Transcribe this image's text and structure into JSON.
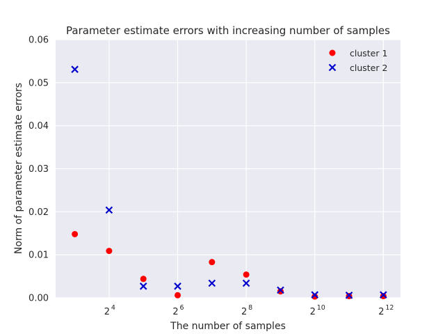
{
  "chart_data": {
    "type": "scatter",
    "title": "Parameter estimate errors with increasing number of samples",
    "xlabel": "The number of samples",
    "ylabel": "Norm of parameter estimate errors",
    "x_scale": "log2",
    "x_values_log2": [
      3,
      4,
      5,
      6,
      7,
      8,
      9,
      10,
      11,
      12
    ],
    "xlim_log2": [
      2.44,
      12.5
    ],
    "ylim": [
      0,
      0.06
    ],
    "x_ticks": [
      {
        "base": "2",
        "exp": "4",
        "value": 4
      },
      {
        "base": "2",
        "exp": "6",
        "value": 6
      },
      {
        "base": "2",
        "exp": "8",
        "value": 8
      },
      {
        "base": "2",
        "exp": "10",
        "value": 10
      },
      {
        "base": "2",
        "exp": "12",
        "value": 12
      }
    ],
    "y_ticks": [
      {
        "label": "0.00",
        "value": 0
      },
      {
        "label": "0.01",
        "value": 0.01
      },
      {
        "label": "0.02",
        "value": 0.02
      },
      {
        "label": "0.03",
        "value": 0.03
      },
      {
        "label": "0.04",
        "value": 0.04
      },
      {
        "label": "0.05",
        "value": 0.05
      },
      {
        "label": "0.06",
        "value": 0.06
      }
    ],
    "grid": true,
    "legend_position": "top-right",
    "series": [
      {
        "name": "cluster 1",
        "marker": "circle",
        "color": "#ff0000",
        "values": [
          0.0148,
          0.0109,
          0.0044,
          0.0006,
          0.0083,
          0.0054,
          0.0015,
          0.0003,
          0.0004,
          0.0004
        ]
      },
      {
        "name": "cluster 2",
        "marker": "x",
        "color": "#0000cc",
        "values": [
          0.0531,
          0.0204,
          0.0027,
          0.0027,
          0.0034,
          0.0034,
          0.0018,
          0.0007,
          0.0006,
          0.0007
        ]
      }
    ],
    "background_color": "#eaeaf2",
    "grid_color": "#ffffff"
  }
}
